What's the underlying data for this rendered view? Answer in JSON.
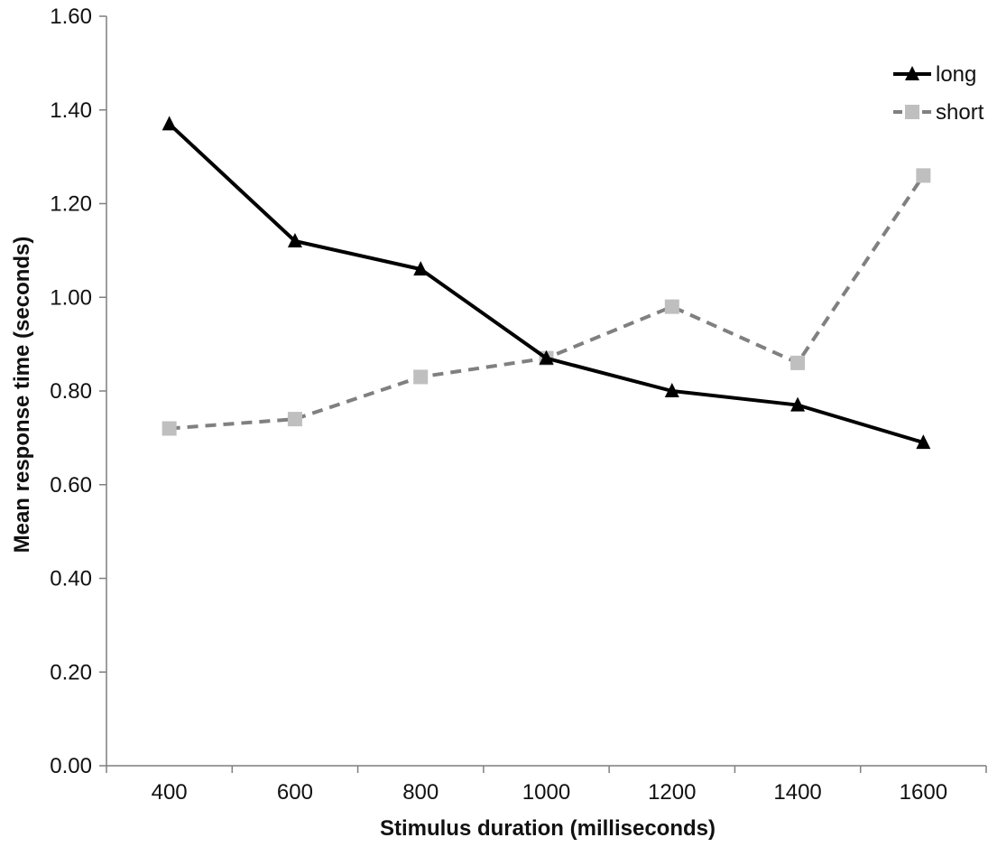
{
  "chart_data": {
    "type": "line",
    "title": "",
    "xlabel": "Stimulus duration (milliseconds)",
    "ylabel": "Mean response time (seconds)",
    "x": [
      400,
      600,
      800,
      1000,
      1200,
      1400,
      1600
    ],
    "x_tick_labels": [
      "400",
      "600",
      "800",
      "1000",
      "1200",
      "1400",
      "1600"
    ],
    "y_tick_labels": [
      "0.00",
      "0.20",
      "0.40",
      "0.60",
      "0.80",
      "1.00",
      "1.20",
      "1.40",
      "1.60"
    ],
    "ylim": [
      0,
      1.6
    ],
    "grid": false,
    "legend_position": "top-right",
    "series": [
      {
        "name": "long",
        "values": [
          1.37,
          1.12,
          1.06,
          0.87,
          0.8,
          0.77,
          0.69
        ],
        "color": "#000000",
        "line_style": "solid",
        "marker": "triangle"
      },
      {
        "name": "short",
        "values": [
          0.72,
          0.74,
          0.83,
          0.87,
          0.98,
          0.86,
          1.26
        ],
        "color": "#808080",
        "marker_color": "#bfbfbf",
        "line_style": "dashed",
        "marker": "square"
      }
    ]
  }
}
